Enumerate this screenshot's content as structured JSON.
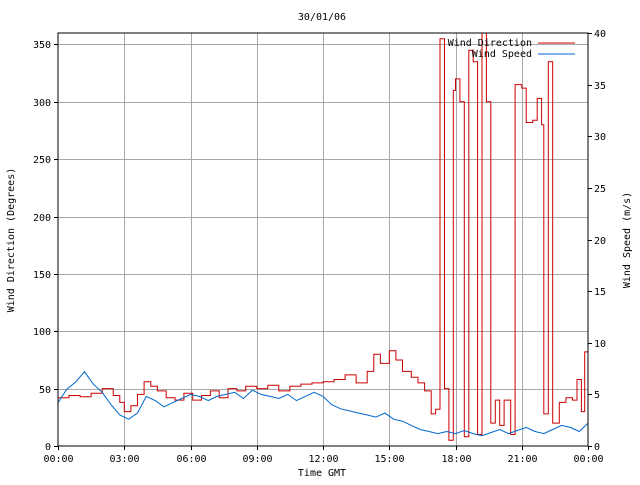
{
  "chart_data": {
    "type": "line",
    "title": "30/01/06",
    "xlabel": "Time GMT",
    "ylabel_left": "Wind Direction (Degrees)",
    "ylabel_right": "Wind Speed (m/s)",
    "x_ticks": [
      "00:00",
      "03:00",
      "06:00",
      "09:00",
      "12:00",
      "15:00",
      "18:00",
      "21:00",
      "00:00"
    ],
    "xlim_hours": [
      0,
      24
    ],
    "ylim_left": [
      0,
      360
    ],
    "yticks_left": [
      0,
      50,
      100,
      150,
      200,
      250,
      300,
      350
    ],
    "ylim_right": [
      0,
      40
    ],
    "yticks_right": [
      0,
      5,
      10,
      15,
      20,
      25,
      30,
      35,
      40
    ],
    "grid": true,
    "legend_position": "top-right",
    "series": [
      {
        "name": "Wind Direction",
        "axis": "left",
        "color": "#cc0000",
        "step": true,
        "points": [
          [
            0.0,
            42
          ],
          [
            0.5,
            44
          ],
          [
            1.0,
            43
          ],
          [
            1.5,
            46
          ],
          [
            2.0,
            50
          ],
          [
            2.5,
            44
          ],
          [
            2.8,
            38
          ],
          [
            3.0,
            30
          ],
          [
            3.3,
            35
          ],
          [
            3.6,
            45
          ],
          [
            3.9,
            56
          ],
          [
            4.2,
            52
          ],
          [
            4.5,
            48
          ],
          [
            4.9,
            42
          ],
          [
            5.3,
            40
          ],
          [
            5.7,
            46
          ],
          [
            6.1,
            40
          ],
          [
            6.5,
            44
          ],
          [
            6.9,
            48
          ],
          [
            7.3,
            42
          ],
          [
            7.7,
            50
          ],
          [
            8.1,
            48
          ],
          [
            8.5,
            52
          ],
          [
            9.0,
            50
          ],
          [
            9.5,
            53
          ],
          [
            10.0,
            48
          ],
          [
            10.5,
            52
          ],
          [
            11.0,
            54
          ],
          [
            11.5,
            55
          ],
          [
            12.0,
            56
          ],
          [
            12.5,
            58
          ],
          [
            13.0,
            62
          ],
          [
            13.5,
            55
          ],
          [
            14.0,
            65
          ],
          [
            14.3,
            80
          ],
          [
            14.6,
            72
          ],
          [
            15.0,
            83
          ],
          [
            15.3,
            75
          ],
          [
            15.6,
            65
          ],
          [
            16.0,
            60
          ],
          [
            16.3,
            55
          ],
          [
            16.6,
            48
          ],
          [
            16.9,
            28
          ],
          [
            17.1,
            32
          ],
          [
            17.3,
            355
          ],
          [
            17.5,
            50
          ],
          [
            17.7,
            5
          ],
          [
            17.9,
            310
          ],
          [
            18.0,
            320
          ],
          [
            18.2,
            300
          ],
          [
            18.4,
            8
          ],
          [
            18.6,
            345
          ],
          [
            18.8,
            335
          ],
          [
            19.0,
            10
          ],
          [
            19.2,
            360
          ],
          [
            19.4,
            300
          ],
          [
            19.6,
            20
          ],
          [
            19.8,
            40
          ],
          [
            20.0,
            18
          ],
          [
            20.2,
            40
          ],
          [
            20.5,
            10
          ],
          [
            20.7,
            315
          ],
          [
            21.0,
            312
          ],
          [
            21.2,
            282
          ],
          [
            21.5,
            284
          ],
          [
            21.7,
            303
          ],
          [
            21.9,
            280
          ],
          [
            22.0,
            28
          ],
          [
            22.2,
            335
          ],
          [
            22.4,
            20
          ],
          [
            22.7,
            38
          ],
          [
            23.0,
            42
          ],
          [
            23.3,
            40
          ],
          [
            23.5,
            58
          ],
          [
            23.7,
            30
          ],
          [
            23.85,
            82
          ],
          [
            24.0,
            72
          ]
        ]
      },
      {
        "name": "Wind Speed",
        "axis": "right",
        "color": "#0066cc",
        "step": false,
        "points": [
          [
            0.0,
            4.2
          ],
          [
            0.4,
            5.5
          ],
          [
            0.8,
            6.2
          ],
          [
            1.2,
            7.2
          ],
          [
            1.6,
            6.0
          ],
          [
            2.0,
            5.2
          ],
          [
            2.4,
            4.0
          ],
          [
            2.8,
            3.0
          ],
          [
            3.2,
            2.6
          ],
          [
            3.6,
            3.2
          ],
          [
            4.0,
            4.8
          ],
          [
            4.4,
            4.4
          ],
          [
            4.8,
            3.8
          ],
          [
            5.2,
            4.2
          ],
          [
            5.6,
            4.6
          ],
          [
            6.0,
            5.0
          ],
          [
            6.4,
            4.8
          ],
          [
            6.8,
            4.4
          ],
          [
            7.2,
            4.8
          ],
          [
            7.6,
            5.0
          ],
          [
            8.0,
            5.2
          ],
          [
            8.4,
            4.6
          ],
          [
            8.8,
            5.4
          ],
          [
            9.2,
            5.0
          ],
          [
            9.6,
            4.8
          ],
          [
            10.0,
            4.6
          ],
          [
            10.4,
            5.0
          ],
          [
            10.8,
            4.4
          ],
          [
            11.2,
            4.8
          ],
          [
            11.6,
            5.2
          ],
          [
            12.0,
            4.8
          ],
          [
            12.4,
            4.0
          ],
          [
            12.8,
            3.6
          ],
          [
            13.2,
            3.4
          ],
          [
            13.6,
            3.2
          ],
          [
            14.0,
            3.0
          ],
          [
            14.4,
            2.8
          ],
          [
            14.8,
            3.2
          ],
          [
            15.2,
            2.6
          ],
          [
            15.6,
            2.4
          ],
          [
            16.0,
            2.0
          ],
          [
            16.4,
            1.6
          ],
          [
            16.8,
            1.4
          ],
          [
            17.2,
            1.2
          ],
          [
            17.6,
            1.4
          ],
          [
            18.0,
            1.2
          ],
          [
            18.4,
            1.5
          ],
          [
            18.8,
            1.2
          ],
          [
            19.2,
            1.0
          ],
          [
            19.6,
            1.3
          ],
          [
            20.0,
            1.6
          ],
          [
            20.4,
            1.2
          ],
          [
            20.8,
            1.5
          ],
          [
            21.2,
            1.8
          ],
          [
            21.6,
            1.4
          ],
          [
            22.0,
            1.2
          ],
          [
            22.4,
            1.6
          ],
          [
            22.8,
            2.0
          ],
          [
            23.2,
            1.8
          ],
          [
            23.6,
            1.4
          ],
          [
            24.0,
            2.2
          ]
        ]
      }
    ]
  }
}
